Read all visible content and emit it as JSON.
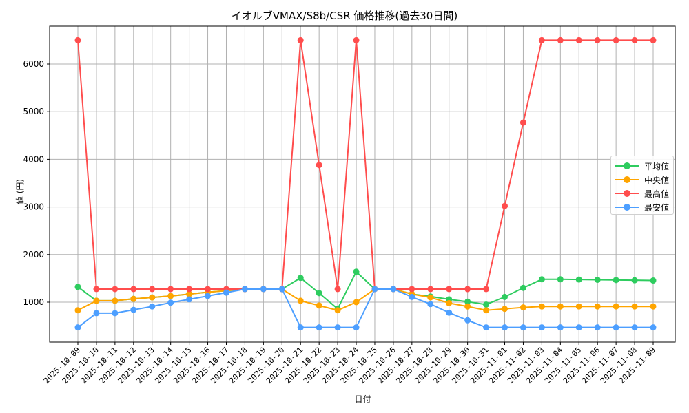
{
  "chart_data": {
    "type": "line",
    "title": "イオルブVMAX/S8b/CSR 価格推移(過去30日間)",
    "xlabel": "日付",
    "ylabel": "値 (円)",
    "ylim": [
      150,
      6800
    ],
    "yticks": [
      1000,
      2000,
      3000,
      4000,
      5000,
      6000
    ],
    "grid": true,
    "legend_position": "center right",
    "categories": [
      "2025-10-09",
      "2025-10-10",
      "2025-10-11",
      "2025-10-12",
      "2025-10-13",
      "2025-10-14",
      "2025-10-15",
      "2025-10-16",
      "2025-10-17",
      "2025-10-18",
      "2025-10-19",
      "2025-10-20",
      "2025-10-21",
      "2025-10-22",
      "2025-10-23",
      "2025-10-24",
      "2025-10-25",
      "2025-10-26",
      "2025-10-27",
      "2025-10-28",
      "2025-10-29",
      "2025-10-30",
      "2025-10-31",
      "2025-11-01",
      "2025-11-02",
      "2025-11-03",
      "2025-11-04",
      "2025-11-05",
      "2025-11-06",
      "2025-11-07",
      "2025-11-08",
      "2025-11-09"
    ],
    "series": [
      {
        "name": "平均値",
        "color": "#2ecc5f",
        "values": [
          1320,
          1030,
          1030,
          1070,
          1100,
          1130,
          1170,
          1210,
          1240,
          1275,
          1275,
          1275,
          1510,
          1190,
          860,
          1640,
          1275,
          1275,
          1170,
          1120,
          1060,
          1010,
          950,
          1110,
          1300,
          1480,
          1480,
          1475,
          1470,
          1465,
          1460,
          1455
        ]
      },
      {
        "name": "中央値",
        "color": "#ffa500",
        "values": [
          830,
          1030,
          1030,
          1070,
          1100,
          1130,
          1170,
          1210,
          1240,
          1275,
          1275,
          1275,
          1030,
          930,
          830,
          1000,
          1275,
          1275,
          1170,
          1100,
          980,
          910,
          830,
          860,
          890,
          910,
          910,
          910,
          910,
          910,
          910,
          910
        ]
      },
      {
        "name": "最高値",
        "color": "#ff4d4d",
        "values": [
          6500,
          1275,
          1275,
          1275,
          1275,
          1275,
          1275,
          1275,
          1275,
          1275,
          1275,
          1275,
          6500,
          3880,
          1275,
          6500,
          1275,
          1275,
          1275,
          1275,
          1275,
          1275,
          1275,
          3020,
          4770,
          6500,
          6500,
          6500,
          6500,
          6500,
          6500,
          6500
        ]
      },
      {
        "name": "最安値",
        "color": "#4d9fff",
        "values": [
          470,
          770,
          770,
          840,
          910,
          990,
          1060,
          1130,
          1200,
          1275,
          1275,
          1275,
          470,
          470,
          470,
          470,
          1275,
          1275,
          1110,
          960,
          780,
          620,
          470,
          470,
          470,
          470,
          470,
          470,
          470,
          470,
          470,
          470
        ]
      }
    ]
  }
}
